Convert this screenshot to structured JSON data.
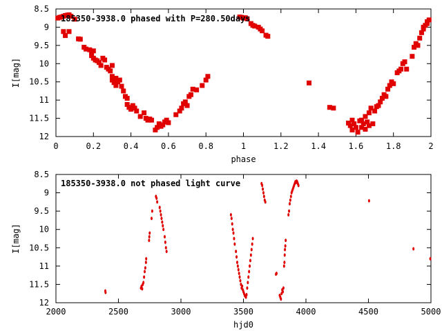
{
  "chart_data": [
    {
      "type": "scatter",
      "title": "185350-3938.0 phased with P=280.50days",
      "xlabel": "phase",
      "ylabel": "I[mag]",
      "xlim": [
        0,
        2
      ],
      "ylim": [
        12,
        8.5
      ],
      "y_inverted": true,
      "xticks": [
        "0",
        "0.2",
        "0.4",
        "0.6",
        "0.8",
        "1",
        "1.2",
        "1.4",
        "1.6",
        "1.8",
        "2"
      ],
      "yticks": [
        "8.5",
        "9",
        "9.5",
        "10",
        "10.5",
        "11",
        "11.5",
        "12"
      ],
      "marker": "filled-square",
      "color": "#e00000",
      "series": [
        {
          "points": [
            [
              0.01,
              8.75
            ],
            [
              0.02,
              8.73
            ],
            [
              0.03,
              8.72
            ],
            [
              0.04,
              8.7
            ],
            [
              0.05,
              8.68
            ],
            [
              0.06,
              8.67
            ],
            [
              0.07,
              8.66
            ],
            [
              0.08,
              8.7
            ],
            [
              0.04,
              9.12
            ],
            [
              0.05,
              9.23
            ],
            [
              0.07,
              9.12
            ],
            [
              0.1,
              8.78
            ],
            [
              0.12,
              9.32
            ],
            [
              0.13,
              9.33
            ],
            [
              0.15,
              9.55
            ],
            [
              0.16,
              9.6
            ],
            [
              0.18,
              9.62
            ],
            [
              0.19,
              9.68
            ],
            [
              0.2,
              9.65
            ],
            [
              0.19,
              9.78
            ],
            [
              0.2,
              9.85
            ],
            [
              0.21,
              9.9
            ],
            [
              0.22,
              9.92
            ],
            [
              0.23,
              9.97
            ],
            [
              0.24,
              10.05
            ],
            [
              0.25,
              9.85
            ],
            [
              0.26,
              9.9
            ],
            [
              0.27,
              10.1
            ],
            [
              0.28,
              10.15
            ],
            [
              0.29,
              10.2
            ],
            [
              0.3,
              10.35
            ],
            [
              0.3,
              10.45
            ],
            [
              0.3,
              10.05
            ],
            [
              0.31,
              10.52
            ],
            [
              0.32,
              10.4
            ],
            [
              0.32,
              10.6
            ],
            [
              0.33,
              10.5
            ],
            [
              0.34,
              10.45
            ],
            [
              0.35,
              10.62
            ],
            [
              0.36,
              10.75
            ],
            [
              0.37,
              10.9
            ],
            [
              0.38,
              10.95
            ],
            [
              0.38,
              11.12
            ],
            [
              0.39,
              11.2
            ],
            [
              0.4,
              11.25
            ],
            [
              0.41,
              11.15
            ],
            [
              0.42,
              11.22
            ],
            [
              0.43,
              11.3
            ],
            [
              0.45,
              11.45
            ],
            [
              0.47,
              11.35
            ],
            [
              0.48,
              11.5
            ],
            [
              0.49,
              11.55
            ],
            [
              0.5,
              11.52
            ],
            [
              0.51,
              11.55
            ],
            [
              0.53,
              11.82
            ],
            [
              0.54,
              11.75
            ],
            [
              0.55,
              11.65
            ],
            [
              0.56,
              11.72
            ],
            [
              0.57,
              11.68
            ],
            [
              0.58,
              11.6
            ],
            [
              0.59,
              11.55
            ],
            [
              0.6,
              11.62
            ],
            [
              0.64,
              11.4
            ],
            [
              0.66,
              11.3
            ],
            [
              0.67,
              11.22
            ],
            [
              0.68,
              11.1
            ],
            [
              0.69,
              11.05
            ],
            [
              0.7,
              11.15
            ],
            [
              0.71,
              10.9
            ],
            [
              0.72,
              10.85
            ],
            [
              0.73,
              10.7
            ],
            [
              0.75,
              10.72
            ],
            [
              0.78,
              10.6
            ],
            [
              0.8,
              10.45
            ],
            [
              0.81,
              10.35
            ],
            [
              0.98,
              8.72
            ],
            [
              0.99,
              8.73
            ],
            [
              1.0,
              8.75
            ],
            [
              1.01,
              8.74
            ],
            [
              1.02,
              8.77
            ],
            [
              1.04,
              8.9
            ],
            [
              1.05,
              8.95
            ],
            [
              1.06,
              8.97
            ],
            [
              1.08,
              9.0
            ],
            [
              1.09,
              9.05
            ],
            [
              1.1,
              9.1
            ],
            [
              1.12,
              9.22
            ],
            [
              1.13,
              9.25
            ],
            [
              1.35,
              10.53
            ],
            [
              1.46,
              11.2
            ],
            [
              1.48,
              11.22
            ],
            [
              1.56,
              11.63
            ],
            [
              1.57,
              11.7
            ],
            [
              1.58,
              11.55
            ],
            [
              1.58,
              11.82
            ],
            [
              1.59,
              11.65
            ],
            [
              1.6,
              11.75
            ],
            [
              1.61,
              11.88
            ],
            [
              1.62,
              11.57
            ],
            [
              1.63,
              11.55
            ],
            [
              1.63,
              11.75
            ],
            [
              1.64,
              11.65
            ],
            [
              1.65,
              11.8
            ],
            [
              1.65,
              11.45
            ],
            [
              1.66,
              11.6
            ],
            [
              1.67,
              11.7
            ],
            [
              1.67,
              11.35
            ],
            [
              1.68,
              11.22
            ],
            [
              1.69,
              11.65
            ],
            [
              1.7,
              11.3
            ],
            [
              1.71,
              11.18
            ],
            [
              1.72,
              11.15
            ],
            [
              1.73,
              11.05
            ],
            [
              1.74,
              10.95
            ],
            [
              1.75,
              10.85
            ],
            [
              1.76,
              10.9
            ],
            [
              1.77,
              10.7
            ],
            [
              1.78,
              10.6
            ],
            [
              1.79,
              10.5
            ],
            [
              1.8,
              10.55
            ],
            [
              1.82,
              10.25
            ],
            [
              1.83,
              10.2
            ],
            [
              1.84,
              10.15
            ],
            [
              1.85,
              10.0
            ],
            [
              1.86,
              9.95
            ],
            [
              1.87,
              10.15
            ],
            [
              1.9,
              9.8
            ],
            [
              1.91,
              9.55
            ],
            [
              1.92,
              9.45
            ],
            [
              1.93,
              9.5
            ],
            [
              1.94,
              9.3
            ],
            [
              1.95,
              9.15
            ],
            [
              1.96,
              9.05
            ],
            [
              1.97,
              8.95
            ],
            [
              1.98,
              8.85
            ],
            [
              1.99,
              8.8
            ],
            [
              1.98,
              8.9
            ],
            [
              1.96,
              9.0
            ]
          ]
        }
      ]
    },
    {
      "type": "scatter",
      "title": "185350-3938.0 not phased light curve",
      "xlabel": "hjd0",
      "ylabel": "I[mag]",
      "xlim": [
        2000,
        5000
      ],
      "ylim": [
        12,
        8.5
      ],
      "y_inverted": true,
      "xticks": [
        "2000",
        "2500",
        "3000",
        "3500",
        "4000",
        "4500",
        "5000"
      ],
      "yticks": [
        "8.5",
        "9",
        "9.5",
        "10",
        "10.5",
        "11",
        "11.5",
        "12"
      ],
      "marker": "small-dot",
      "color": "#e00000",
      "series": [
        {
          "points": [
            [
              2395,
              11.68
            ],
            [
              2397,
              11.72
            ],
            [
              2680,
              11.6
            ],
            [
              2685,
              11.55
            ],
            [
              2690,
              11.62
            ],
            [
              2695,
              11.5
            ],
            [
              2700,
              11.45
            ],
            [
              2705,
              11.3
            ],
            [
              2710,
              11.15
            ],
            [
              2715,
              11.05
            ],
            [
              2720,
              10.9
            ],
            [
              2722,
              10.8
            ],
            [
              2745,
              10.3
            ],
            [
              2747,
              10.2
            ],
            [
              2750,
              10.1
            ],
            [
              2765,
              9.7
            ],
            [
              2770,
              9.5
            ],
            [
              2800,
              9.1
            ],
            [
              2805,
              9.15
            ],
            [
              2810,
              9.25
            ],
            [
              2830,
              9.4
            ],
            [
              2835,
              9.5
            ],
            [
              2840,
              9.6
            ],
            [
              2845,
              9.7
            ],
            [
              2850,
              9.8
            ],
            [
              2855,
              9.9
            ],
            [
              2860,
              10.0
            ],
            [
              2870,
              10.2
            ],
            [
              2875,
              10.35
            ],
            [
              2880,
              10.5
            ],
            [
              2885,
              10.6
            ],
            [
              3400,
              9.6
            ],
            [
              3405,
              9.7
            ],
            [
              3410,
              9.85
            ],
            [
              3415,
              10.0
            ],
            [
              3420,
              10.1
            ],
            [
              3425,
              10.25
            ],
            [
              3430,
              10.4
            ],
            [
              3440,
              10.6
            ],
            [
              3445,
              10.75
            ],
            [
              3450,
              10.9
            ],
            [
              3455,
              11.0
            ],
            [
              3460,
              11.1
            ],
            [
              3465,
              11.2
            ],
            [
              3470,
              11.3
            ],
            [
              3475,
              11.4
            ],
            [
              3480,
              11.5
            ],
            [
              3485,
              11.6
            ],
            [
              3490,
              11.55
            ],
            [
              3495,
              11.65
            ],
            [
              3500,
              11.7
            ],
            [
              3505,
              11.75
            ],
            [
              3510,
              11.8
            ],
            [
              3515,
              11.82
            ],
            [
              3520,
              11.85
            ],
            [
              3525,
              11.78
            ],
            [
              3530,
              11.6
            ],
            [
              3535,
              11.45
            ],
            [
              3540,
              11.3
            ],
            [
              3545,
              11.15
            ],
            [
              3550,
              11.0
            ],
            [
              3555,
              10.85
            ],
            [
              3560,
              10.7
            ],
            [
              3565,
              10.55
            ],
            [
              3570,
              10.4
            ],
            [
              3575,
              10.25
            ],
            [
              3645,
              8.75
            ],
            [
              3650,
              8.8
            ],
            [
              3655,
              8.9
            ],
            [
              3660,
              9.0
            ],
            [
              3665,
              9.1
            ],
            [
              3670,
              9.2
            ],
            [
              3675,
              9.25
            ],
            [
              3760,
              11.22
            ],
            [
              3765,
              11.2
            ],
            [
              3790,
              11.8
            ],
            [
              3795,
              11.85
            ],
            [
              3800,
              11.9
            ],
            [
              3805,
              11.75
            ],
            [
              3810,
              11.65
            ],
            [
              3815,
              11.7
            ],
            [
              3820,
              11.6
            ],
            [
              3825,
              11.0
            ],
            [
              3828,
              10.9
            ],
            [
              3830,
              10.7
            ],
            [
              3832,
              10.55
            ],
            [
              3835,
              10.45
            ],
            [
              3838,
              10.3
            ],
            [
              3860,
              9.6
            ],
            [
              3865,
              9.5
            ],
            [
              3870,
              9.3
            ],
            [
              3875,
              9.2
            ],
            [
              3880,
              9.1
            ],
            [
              3885,
              9.0
            ],
            [
              3890,
              8.95
            ],
            [
              3895,
              8.9
            ],
            [
              3900,
              8.85
            ],
            [
              3905,
              8.8
            ],
            [
              3910,
              8.75
            ],
            [
              3915,
              8.7
            ],
            [
              3920,
              8.72
            ],
            [
              3925,
              8.68
            ],
            [
              3930,
              8.7
            ],
            [
              3935,
              8.75
            ],
            [
              3940,
              8.8
            ],
            [
              4505,
              9.22
            ],
            [
              4860,
              10.53
            ],
            [
              4995,
              10.8
            ]
          ]
        }
      ]
    }
  ]
}
